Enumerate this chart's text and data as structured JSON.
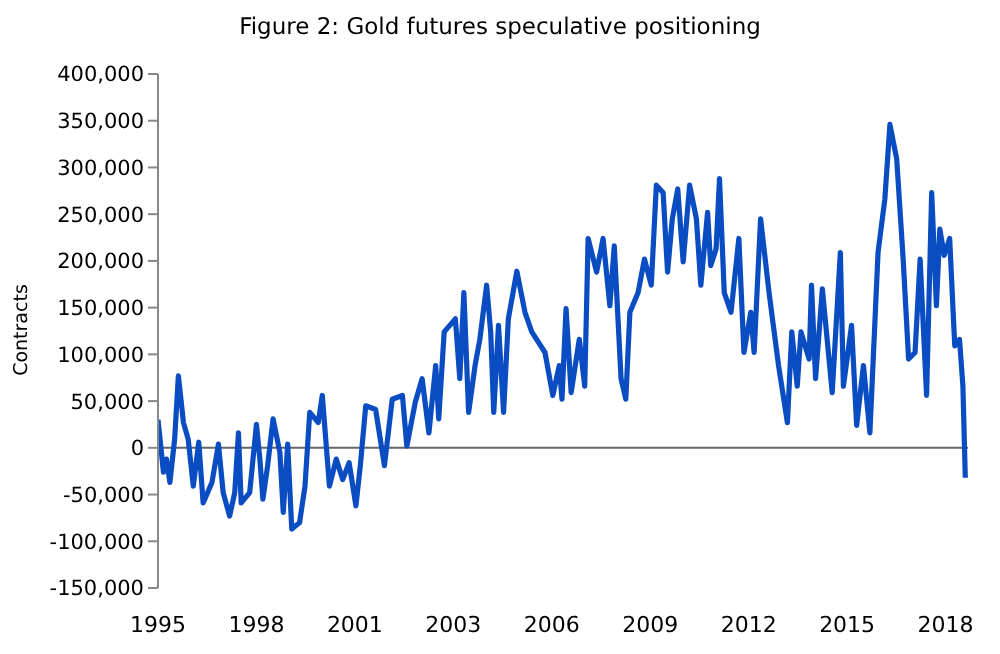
{
  "chart_data": {
    "type": "line",
    "title": "Figure 2: Gold futures speculative positioning",
    "ylabel": "Contracts",
    "x": [
      1994.75,
      1994.91,
      1995.0,
      1995.1,
      1995.24,
      1995.35,
      1995.5,
      1995.64,
      1995.79,
      1995.95,
      1996.08,
      1996.34,
      1996.53,
      1996.67,
      1996.86,
      1997.01,
      1997.12,
      1997.2,
      1997.45,
      1997.65,
      1997.75,
      1997.84,
      1997.98,
      1998.14,
      1998.34,
      1998.44,
      1998.57,
      1998.69,
      1998.92,
      1999.08,
      1999.22,
      1999.47,
      1999.59,
      1999.8,
      2000.0,
      2000.19,
      2000.38,
      2000.58,
      2000.71,
      2000.87,
      2001.16,
      2001.42,
      2001.65,
      2001.95,
      2002.08,
      2002.33,
      2002.53,
      2002.73,
      2002.93,
      2003.02,
      2003.18,
      2003.51,
      2003.64,
      2003.76,
      2003.9,
      2004.09,
      2004.23,
      2004.43,
      2004.55,
      2004.64,
      2004.78,
      2004.93,
      2005.07,
      2005.32,
      2005.56,
      2005.76,
      2006.15,
      2006.38,
      2006.57,
      2006.65,
      2006.77,
      2006.92,
      2007.16,
      2007.32,
      2007.42,
      2007.67,
      2007.86,
      2008.06,
      2008.19,
      2008.39,
      2008.53,
      2008.65,
      2008.89,
      2009.08,
      2009.28,
      2009.43,
      2009.63,
      2009.76,
      2009.9,
      2010.06,
      2010.22,
      2010.41,
      2010.61,
      2010.74,
      2010.94,
      2011.03,
      2011.19,
      2011.29,
      2011.43,
      2011.63,
      2011.86,
      2012.01,
      2012.21,
      2012.31,
      2012.5,
      2012.75,
      2013.03,
      2013.29,
      2013.42,
      2013.58,
      2013.69,
      2013.93,
      2014.0,
      2014.12,
      2014.32,
      2014.61,
      2014.85,
      2014.94,
      2015.18,
      2015.33,
      2015.53,
      2015.72,
      2015.96,
      2016.16,
      2016.31,
      2016.51,
      2016.7,
      2016.86,
      2017.05,
      2017.2,
      2017.39,
      2017.54,
      2017.68,
      2017.78,
      2017.91,
      2018.07,
      2018.22,
      2018.36,
      2018.46,
      2018.53
    ],
    "series": [
      {
        "color": "#0a4cc2",
        "values": [
          30000,
          -26000,
          -12000,
          -37000,
          9000,
          77000,
          27000,
          9000,
          -41000,
          6000,
          -59000,
          -37000,
          4000,
          -48000,
          -73000,
          -48000,
          16000,
          -59000,
          -48000,
          25000,
          -12000,
          -55000,
          -19000,
          31000,
          -5000,
          -69000,
          4000,
          -87000,
          -80000,
          -41000,
          38000,
          27000,
          56000,
          -41000,
          -12000,
          -34000,
          -16000,
          -62000,
          -19000,
          45000,
          41000,
          -19000,
          52000,
          56000,
          2000,
          49000,
          74000,
          16000,
          88000,
          31000,
          124000,
          138000,
          74000,
          166000,
          38000,
          88000,
          116000,
          174000,
          124000,
          38000,
          131000,
          38000,
          138000,
          189000,
          145000,
          124000,
          102000,
          56000,
          88000,
          52000,
          149000,
          59000,
          116000,
          66000,
          224000,
          188000,
          224000,
          152000,
          216000,
          74000,
          52000,
          145000,
          166000,
          202000,
          174000,
          281000,
          273000,
          188000,
          245000,
          277000,
          199000,
          281000,
          245000,
          174000,
          252000,
          195000,
          213000,
          288000,
          166000,
          145000,
          224000,
          102000,
          145000,
          102000,
          245000,
          166000,
          88000,
          27000,
          124000,
          66000,
          124000,
          95000,
          174000,
          74000,
          170000,
          59000,
          209000,
          66000,
          131000,
          24000,
          88000,
          16000,
          209000,
          266000,
          346000,
          309000,
          202000,
          95000,
          102000,
          202000,
          56000,
          273000,
          152000,
          234000,
          206000,
          224000,
          109000,
          116000,
          66000,
          -32000
        ]
      }
    ],
    "xlim": [
      1994.75,
      2018.61
    ],
    "xticks": [
      {
        "value": 1994.75,
        "label": "1995"
      },
      {
        "value": 1997.65,
        "label": "1998"
      },
      {
        "value": 2000.55,
        "label": "2001"
      },
      {
        "value": 2003.45,
        "label": "2003"
      },
      {
        "value": 2006.35,
        "label": "2006"
      },
      {
        "value": 2009.25,
        "label": "2009"
      },
      {
        "value": 2012.15,
        "label": "2012"
      },
      {
        "value": 2015.05,
        "label": "2015"
      },
      {
        "value": 2017.95,
        "label": "2018"
      }
    ],
    "ylim": [
      -150000,
      400000
    ],
    "yticks": [
      {
        "value": -150000,
        "label": "-150,000"
      },
      {
        "value": -100000,
        "label": "-100,000"
      },
      {
        "value": -50000,
        "label": "-50,000"
      },
      {
        "value": 0,
        "label": "0"
      },
      {
        "value": 50000,
        "label": "50,000"
      },
      {
        "value": 100000,
        "label": "100,000"
      },
      {
        "value": 150000,
        "label": "150,000"
      },
      {
        "value": 200000,
        "label": "200,000"
      },
      {
        "value": 250000,
        "label": "250,000"
      },
      {
        "value": 300000,
        "label": "300,000"
      },
      {
        "value": 350000,
        "label": "350,000"
      },
      {
        "value": 400000,
        "label": "400,000"
      }
    ]
  }
}
